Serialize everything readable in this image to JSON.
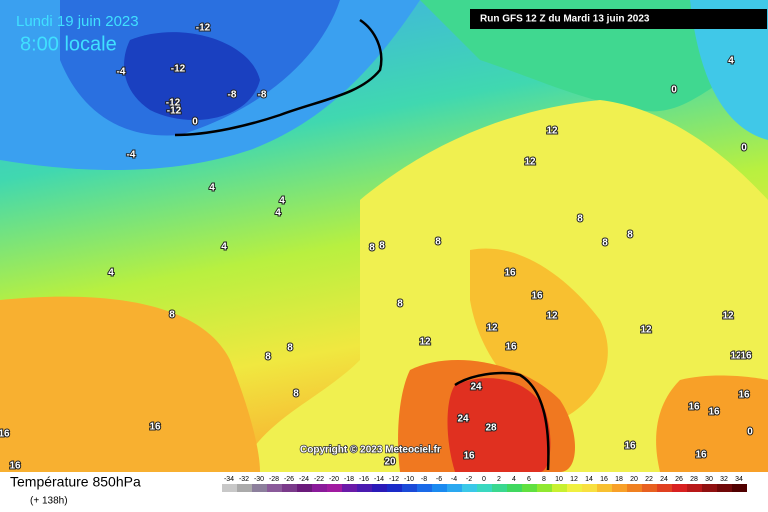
{
  "header": {
    "date": "Lundi 19 juin 2023",
    "time": "8:00 locale",
    "run": "Run GFS 12 Z du Mardi 13 juin 2023"
  },
  "footer": {
    "title": "Température 850hPa",
    "subtitle": "(+ 138h)",
    "copyright": "Copyright © 2023 Meteociel.fr"
  },
  "legend": {
    "ticks": [
      -34,
      -32,
      -30,
      -28,
      -26,
      -24,
      -22,
      -20,
      -18,
      -16,
      -14,
      -12,
      -10,
      -8,
      -6,
      -4,
      -2,
      0,
      2,
      4,
      6,
      8,
      10,
      12,
      14,
      16,
      18,
      20,
      22,
      24,
      26,
      28,
      30,
      32,
      34
    ],
    "colors": [
      "#c8c8c8",
      "#aaaaaa",
      "#8c7f9c",
      "#8a5a9a",
      "#7a3a8a",
      "#6a1a7a",
      "#8a1a9a",
      "#a01aa0",
      "#6a1aa8",
      "#4a1ab0",
      "#2a1ab8",
      "#1a2ac8",
      "#1a4ad8",
      "#1a6ae8",
      "#1a8af0",
      "#2aa8f0",
      "#3ac8e8",
      "#3ad8c0",
      "#3ad890",
      "#40d860",
      "#60e040",
      "#90e830",
      "#c8f030",
      "#f0f040",
      "#f8e040",
      "#f8c030",
      "#f8a028",
      "#f08020",
      "#e86020",
      "#e04020",
      "#d82020",
      "#b81818",
      "#901010",
      "#700808",
      "#500000"
    ]
  },
  "map": {
    "labels": [
      -12,
      -12,
      -4,
      -8,
      -8,
      -12,
      -12,
      0,
      -4,
      4,
      4,
      4,
      4,
      4,
      8,
      8,
      8,
      8,
      8,
      8,
      8,
      8,
      12,
      12,
      12,
      12,
      16,
      16,
      12,
      16,
      8,
      8,
      8,
      12,
      12,
      12,
      16,
      16,
      16,
      16,
      16,
      16,
      16,
      20,
      24,
      24,
      28,
      16,
      16,
      16,
      0,
      4,
      0,
      0
    ]
  }
}
